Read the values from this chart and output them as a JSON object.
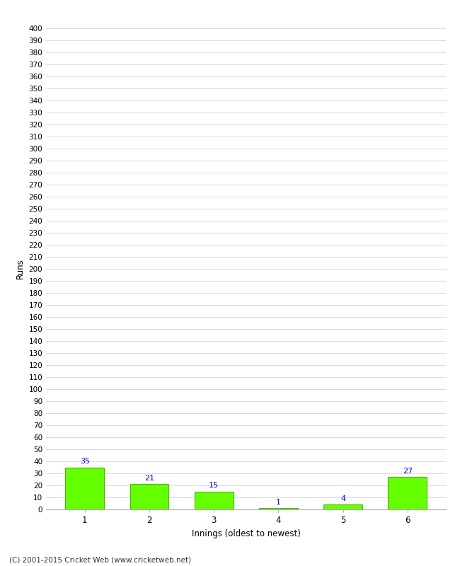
{
  "categories": [
    "1",
    "2",
    "3",
    "4",
    "5",
    "6"
  ],
  "values": [
    35,
    21,
    15,
    1,
    4,
    27
  ],
  "bar_color": "#66ff00",
  "bar_edge_color": "#44bb00",
  "label_color": "#0000cc",
  "xlabel": "Innings (oldest to newest)",
  "ylabel": "Runs",
  "ylim": [
    0,
    400
  ],
  "background_color": "#ffffff",
  "grid_color": "#cccccc",
  "footer": "(C) 2001-2015 Cricket Web (www.cricketweb.net)"
}
